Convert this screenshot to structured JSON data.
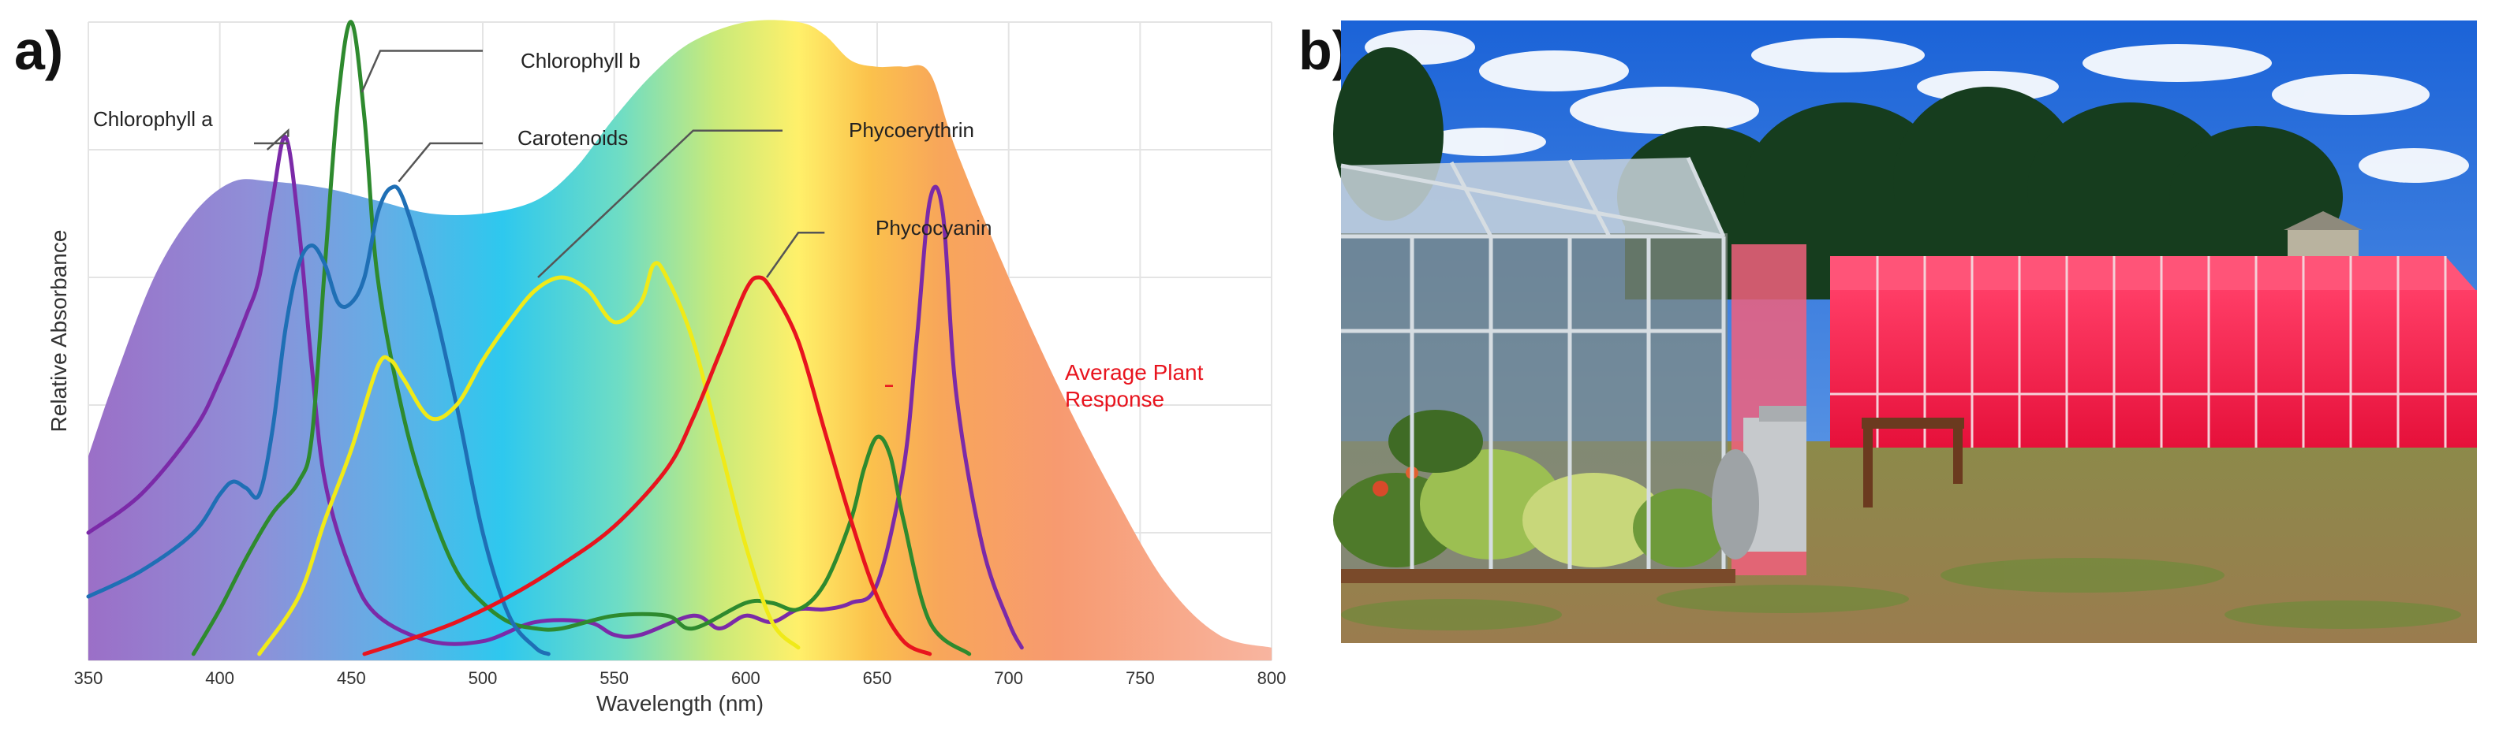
{
  "panels": {
    "a_label": "a)",
    "b_label": "b)"
  },
  "chart_data": {
    "type": "line",
    "title": "",
    "xlabel": "Wavelength (nm)",
    "ylabel": "Relative Absorbance",
    "xlim": [
      350,
      800
    ],
    "ylim": [
      0,
      1
    ],
    "xticks": [
      350,
      400,
      450,
      500,
      550,
      600,
      650,
      700,
      750,
      800
    ],
    "grid": true,
    "background_area": {
      "name": "Average Plant Response",
      "points": [
        [
          350,
          0.32
        ],
        [
          360,
          0.44
        ],
        [
          375,
          0.6
        ],
        [
          390,
          0.7
        ],
        [
          405,
          0.75
        ],
        [
          420,
          0.75
        ],
        [
          440,
          0.74
        ],
        [
          460,
          0.72
        ],
        [
          480,
          0.7
        ],
        [
          500,
          0.7
        ],
        [
          520,
          0.72
        ],
        [
          535,
          0.77
        ],
        [
          550,
          0.85
        ],
        [
          565,
          0.92
        ],
        [
          580,
          0.97
        ],
        [
          600,
          1.0
        ],
        [
          620,
          1.0
        ],
        [
          630,
          0.98
        ],
        [
          640,
          0.94
        ],
        [
          650,
          0.93
        ],
        [
          660,
          0.93
        ],
        [
          670,
          0.92
        ],
        [
          680,
          0.8
        ],
        [
          700,
          0.6
        ],
        [
          720,
          0.42
        ],
        [
          740,
          0.26
        ],
        [
          760,
          0.12
        ],
        [
          780,
          0.04
        ],
        [
          800,
          0.02
        ]
      ]
    },
    "series": [
      {
        "name": "Chlorophyll a",
        "color": "#7b2aa8",
        "points": [
          [
            350,
            0.2
          ],
          [
            370,
            0.26
          ],
          [
            390,
            0.36
          ],
          [
            400,
            0.44
          ],
          [
            410,
            0.54
          ],
          [
            415,
            0.6
          ],
          [
            420,
            0.72
          ],
          [
            425,
            0.82
          ],
          [
            430,
            0.68
          ],
          [
            435,
            0.46
          ],
          [
            440,
            0.28
          ],
          [
            450,
            0.14
          ],
          [
            460,
            0.07
          ],
          [
            480,
            0.03
          ],
          [
            500,
            0.03
          ],
          [
            520,
            0.06
          ],
          [
            540,
            0.06
          ],
          [
            550,
            0.04
          ],
          [
            560,
            0.04
          ],
          [
            580,
            0.07
          ],
          [
            590,
            0.05
          ],
          [
            600,
            0.07
          ],
          [
            610,
            0.06
          ],
          [
            620,
            0.08
          ],
          [
            630,
            0.08
          ],
          [
            640,
            0.09
          ],
          [
            650,
            0.12
          ],
          [
            660,
            0.3
          ],
          [
            665,
            0.5
          ],
          [
            670,
            0.72
          ],
          [
            675,
            0.7
          ],
          [
            680,
            0.42
          ],
          [
            690,
            0.18
          ],
          [
            700,
            0.06
          ],
          [
            705,
            0.02
          ]
        ]
      },
      {
        "name": "Chlorophyll b",
        "color": "#2e8a2e",
        "points": [
          [
            390,
            0.01
          ],
          [
            400,
            0.08
          ],
          [
            410,
            0.16
          ],
          [
            420,
            0.23
          ],
          [
            430,
            0.28
          ],
          [
            435,
            0.35
          ],
          [
            440,
            0.62
          ],
          [
            445,
            0.88
          ],
          [
            450,
            1.0
          ],
          [
            455,
            0.85
          ],
          [
            460,
            0.6
          ],
          [
            470,
            0.38
          ],
          [
            480,
            0.24
          ],
          [
            490,
            0.14
          ],
          [
            500,
            0.09
          ],
          [
            510,
            0.06
          ],
          [
            520,
            0.05
          ],
          [
            530,
            0.05
          ],
          [
            550,
            0.07
          ],
          [
            570,
            0.07
          ],
          [
            580,
            0.05
          ],
          [
            600,
            0.09
          ],
          [
            610,
            0.09
          ],
          [
            620,
            0.08
          ],
          [
            630,
            0.12
          ],
          [
            640,
            0.22
          ],
          [
            645,
            0.3
          ],
          [
            650,
            0.35
          ],
          [
            655,
            0.32
          ],
          [
            660,
            0.22
          ],
          [
            670,
            0.06
          ],
          [
            685,
            0.01
          ]
        ]
      },
      {
        "name": "Carotenoids",
        "color": "#1f6fb5",
        "points": [
          [
            350,
            0.1
          ],
          [
            370,
            0.14
          ],
          [
            390,
            0.2
          ],
          [
            400,
            0.26
          ],
          [
            405,
            0.28
          ],
          [
            410,
            0.27
          ],
          [
            415,
            0.26
          ],
          [
            420,
            0.36
          ],
          [
            425,
            0.52
          ],
          [
            430,
            0.62
          ],
          [
            435,
            0.65
          ],
          [
            440,
            0.62
          ],
          [
            445,
            0.56
          ],
          [
            450,
            0.56
          ],
          [
            455,
            0.6
          ],
          [
            460,
            0.7
          ],
          [
            465,
            0.74
          ],
          [
            470,
            0.72
          ],
          [
            480,
            0.58
          ],
          [
            490,
            0.4
          ],
          [
            500,
            0.2
          ],
          [
            510,
            0.07
          ],
          [
            520,
            0.02
          ],
          [
            525,
            0.01
          ]
        ]
      },
      {
        "name": "Phycoerythrin",
        "color": "#f0ea18",
        "points": [
          [
            415,
            0.01
          ],
          [
            430,
            0.1
          ],
          [
            440,
            0.22
          ],
          [
            450,
            0.33
          ],
          [
            460,
            0.46
          ],
          [
            465,
            0.47
          ],
          [
            470,
            0.44
          ],
          [
            480,
            0.38
          ],
          [
            490,
            0.4
          ],
          [
            500,
            0.47
          ],
          [
            510,
            0.53
          ],
          [
            520,
            0.58
          ],
          [
            530,
            0.6
          ],
          [
            540,
            0.58
          ],
          [
            550,
            0.53
          ],
          [
            560,
            0.56
          ],
          [
            565,
            0.62
          ],
          [
            570,
            0.6
          ],
          [
            580,
            0.5
          ],
          [
            590,
            0.34
          ],
          [
            600,
            0.18
          ],
          [
            610,
            0.06
          ],
          [
            620,
            0.02
          ]
        ]
      },
      {
        "name": "Phycocyanin",
        "color": "#e8141e",
        "points": [
          [
            455,
            0.01
          ],
          [
            470,
            0.03
          ],
          [
            490,
            0.06
          ],
          [
            510,
            0.1
          ],
          [
            530,
            0.15
          ],
          [
            550,
            0.21
          ],
          [
            570,
            0.3
          ],
          [
            580,
            0.38
          ],
          [
            590,
            0.48
          ],
          [
            600,
            0.58
          ],
          [
            605,
            0.6
          ],
          [
            610,
            0.58
          ],
          [
            620,
            0.5
          ],
          [
            630,
            0.36
          ],
          [
            640,
            0.22
          ],
          [
            650,
            0.1
          ],
          [
            660,
            0.03
          ],
          [
            670,
            0.01
          ]
        ]
      }
    ],
    "annotations": [
      {
        "text": "Chlorophyll a"
      },
      {
        "text": "Chlorophyll b"
      },
      {
        "text": "Carotenoids"
      },
      {
        "text": "Phycoerythrin"
      },
      {
        "text": "Phycocyanin"
      },
      {
        "line1": "Average Plant",
        "line2": "Response"
      }
    ]
  }
}
